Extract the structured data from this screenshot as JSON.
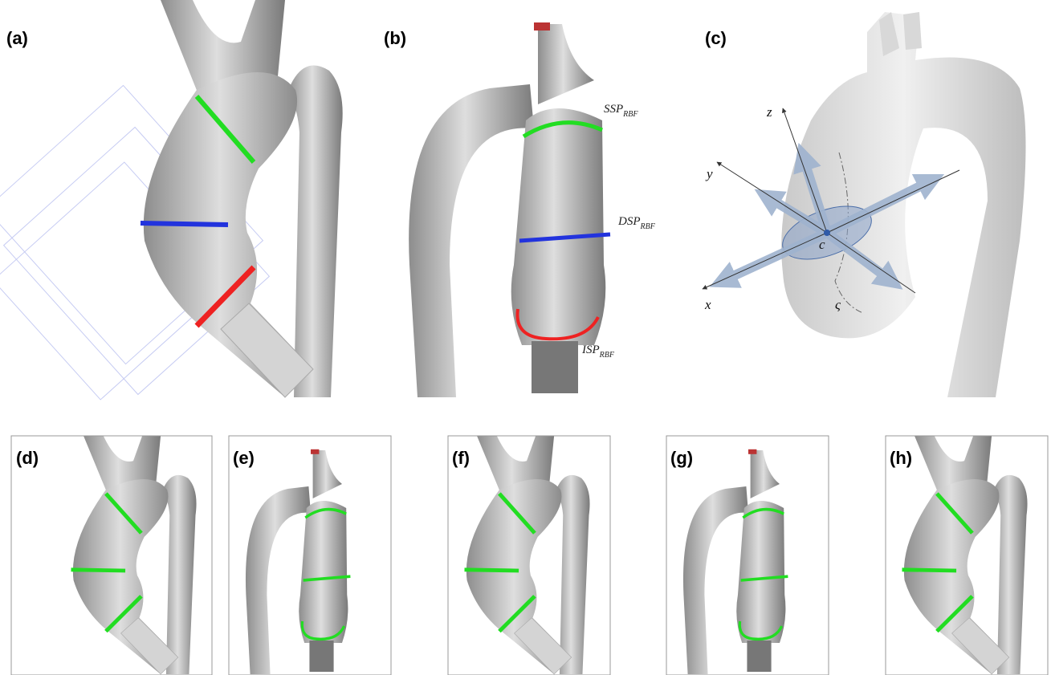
{
  "panels": {
    "a": {
      "label": "(a)"
    },
    "b": {
      "label": "(b)",
      "annotations": [
        {
          "main": "SSP",
          "sub": "RBF"
        },
        {
          "main": "DSP",
          "sub": "RBF"
        },
        {
          "main": "ISP",
          "sub": "RBF"
        }
      ]
    },
    "c": {
      "label": "(c)",
      "axes": {
        "z": "z",
        "y": "y",
        "x": "x",
        "center": "c",
        "curve": "ς"
      }
    },
    "d": {
      "label": "(d)"
    },
    "e": {
      "label": "(e)"
    },
    "f": {
      "label": "(f)"
    },
    "g": {
      "label": "(g)"
    },
    "h": {
      "label": "(h)"
    }
  }
}
